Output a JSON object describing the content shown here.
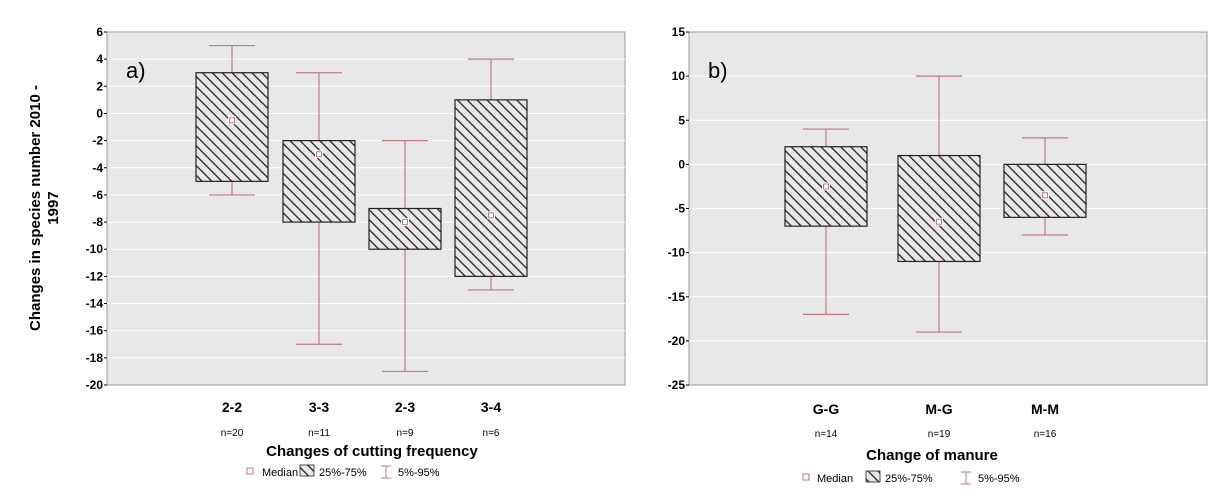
{
  "colors": {
    "plot_bg": "#e8e8e8",
    "whisker": "#c07a82",
    "median_marker": "#c07a82",
    "box_hatch": "#222222",
    "grid": "#ffffff"
  },
  "legend_labels": {
    "median": "Median",
    "iqr": "25%-75%",
    "range": "5%-95%"
  },
  "chart_data": [
    {
      "type": "box",
      "panel_label": "a)",
      "ylabel": "Changes in species number 2010 - 1997",
      "xlabel": "Changes of cutting frequency",
      "ylim": [
        -20,
        6
      ],
      "yticks": [
        6,
        4,
        2,
        0,
        -2,
        -4,
        -6,
        -8,
        -10,
        -12,
        -14,
        -16,
        -18,
        -20
      ],
      "grid": true,
      "legend_position": "bottom",
      "categories": [
        "2-2",
        "3-3",
        "2-3",
        "3-4"
      ],
      "n_labels": [
        "n=20",
        "n=11",
        "n=9",
        "n=6"
      ],
      "median": [
        -0.5,
        -3,
        -8,
        -7.5
      ],
      "q25": [
        -5,
        -8,
        -10,
        -12
      ],
      "q75": [
        3,
        -2,
        -7,
        1
      ],
      "p5": [
        -6,
        -17,
        -19,
        -13
      ],
      "p95": [
        5,
        3,
        -2,
        4
      ]
    },
    {
      "type": "box",
      "panel_label": "b)",
      "ylabel": "",
      "xlabel": "Change of manure",
      "ylim": [
        -25,
        15
      ],
      "yticks": [
        15,
        10,
        5,
        0,
        -5,
        -10,
        -15,
        -20,
        -25
      ],
      "grid": true,
      "legend_position": "bottom",
      "categories": [
        "G-G",
        "M-G",
        "M-M"
      ],
      "n_labels": [
        "n=14",
        "n=19",
        "n=16"
      ],
      "median": [
        -2.5,
        -6.5,
        -3.5
      ],
      "q25": [
        -7,
        -11,
        -6
      ],
      "q75": [
        2,
        1,
        0
      ],
      "p5": [
        -17,
        -19,
        -8
      ],
      "p95": [
        4,
        10,
        3
      ]
    }
  ]
}
